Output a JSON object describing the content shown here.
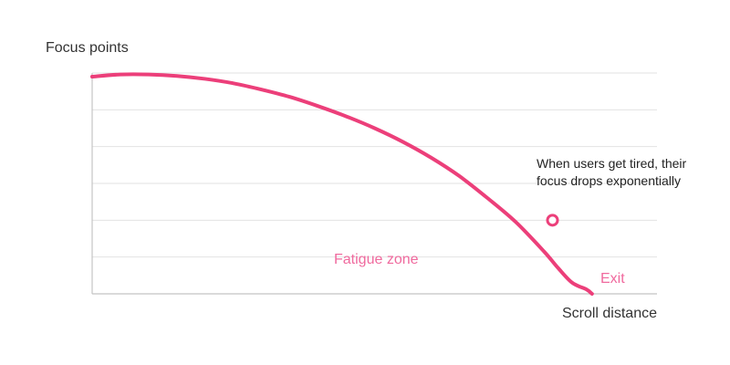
{
  "chart_data": {
    "type": "line",
    "ylabel": "Focus points",
    "xlabel": "Scroll distance",
    "ylim": [
      0,
      6
    ],
    "xlim": [
      0,
      10
    ],
    "grid": true,
    "gridlines_y": [
      1,
      2,
      3,
      4,
      5,
      6
    ],
    "series": [
      {
        "x": [
          0,
          0.5,
          1,
          1.5,
          2,
          2.5,
          3,
          3.5,
          4,
          4.5,
          5,
          5.5,
          6,
          6.5,
          7,
          7.5,
          8,
          8.25,
          8.5,
          8.75,
          8.85
        ],
        "values": [
          5.9,
          5.96,
          5.96,
          5.92,
          5.84,
          5.72,
          5.55,
          5.35,
          5.1,
          4.82,
          4.5,
          4.13,
          3.7,
          3.2,
          2.6,
          1.95,
          1.15,
          0.7,
          0.3,
          0.12,
          0
        ]
      }
    ],
    "marker": {
      "x": 8.15,
      "y": 2.0
    },
    "annotations": {
      "main_line1": "When users get tired, their",
      "main_line2": "focus drops exponentially",
      "zone": "Fatigue zone",
      "exit": "Exit"
    },
    "colors": {
      "line": "#ec3f7a",
      "zone_text": "#f06a9e",
      "grid": "#e2e2e2",
      "axis": "#c4c4c4",
      "marker_fill": "#ffffff"
    }
  }
}
